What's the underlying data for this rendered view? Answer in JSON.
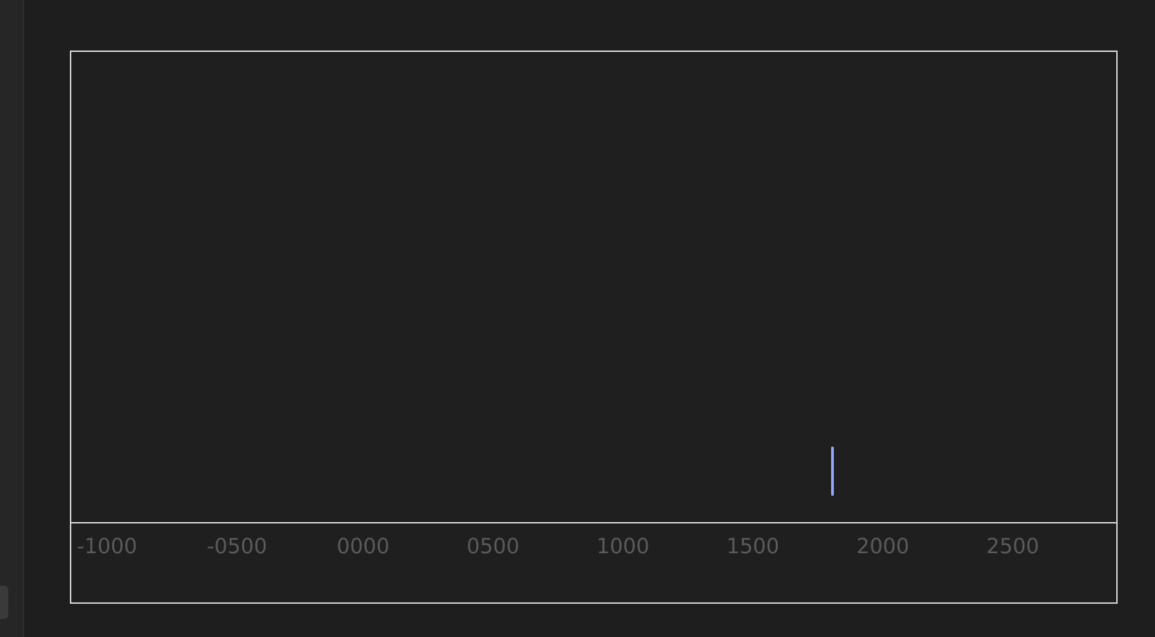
{
  "timeline": {
    "ticks": [
      {
        "value": -1000,
        "label": "-1000"
      },
      {
        "value": -500,
        "label": "-0500"
      },
      {
        "value": 0,
        "label": "0000"
      },
      {
        "value": 500,
        "label": "0500"
      },
      {
        "value": 1000,
        "label": "1000"
      },
      {
        "value": 1500,
        "label": "1500"
      },
      {
        "value": 2000,
        "label": "2000"
      },
      {
        "value": 2500,
        "label": "2500"
      }
    ],
    "x_range": [
      -1000,
      3000
    ],
    "markers": [
      {
        "year": 1908,
        "color": "#8fa8ff"
      }
    ],
    "colors": {
      "background": "#1e1e1e",
      "frame": "#d9d9d9",
      "tick_text": "#5a5a5a",
      "marker": "#8fa8ff"
    }
  }
}
